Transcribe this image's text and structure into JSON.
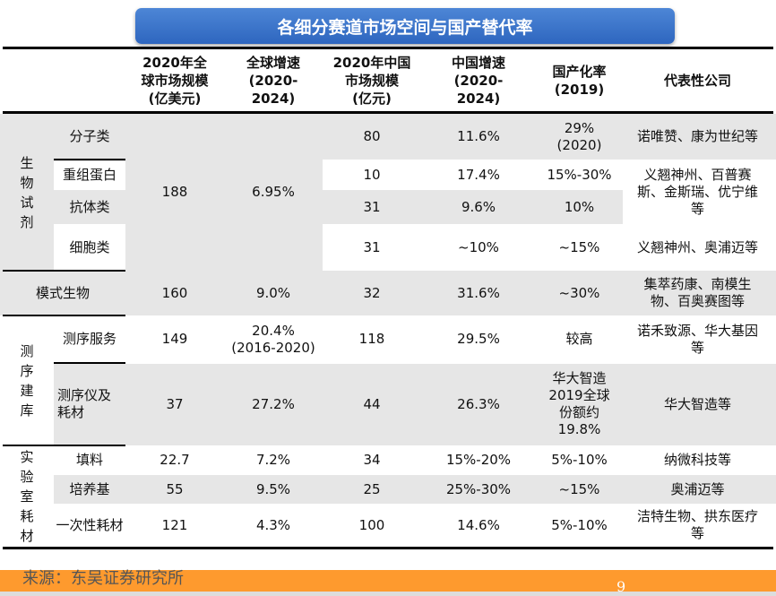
{
  "title": "各细分赛道市场空间与国产替代率",
  "headers": [
    "2020年全球市场规模(亿美元)",
    "全球增速(2020-2024)",
    "2020年中国市场规模(亿元)",
    "中国增速(2020-2024)",
    "国产化率(2019)",
    "代表性公司"
  ],
  "header_lines": [
    [
      "2020年全",
      "球市场规模",
      "(亿美元)"
    ],
    [
      "全球增速",
      "(2020-",
      "2024)"
    ],
    [
      "2020年中国",
      "市场规模",
      "(亿元)"
    ],
    [
      "中国增速",
      "(2020-",
      "2024)"
    ],
    [
      "国产化率",
      "(2019)"
    ],
    [
      "代表性公司"
    ]
  ],
  "groups": {
    "bio": "生物试剂",
    "seq": "测序建库",
    "lab": "实验室耗材"
  },
  "rows": {
    "molecular": {
      "name": "分子类",
      "cn_size": "80",
      "cn_growth": "11.6%",
      "domestic": "29%\n(2020)",
      "companies": "诺唯赞、康为世纪等"
    },
    "protein": {
      "name": "重组蛋白",
      "cn_size": "10",
      "cn_growth": "17.4%",
      "domestic": "15%-30%",
      "companies": "义翘神州、百普赛斯、金斯瑞、优宁维等"
    },
    "antibody": {
      "name": "抗体类",
      "cn_size": "31",
      "cn_growth": "9.6%",
      "domestic": "10%"
    },
    "cell": {
      "name": "细胞类",
      "cn_size": "31",
      "cn_growth": "~10%",
      "domestic": "~15%",
      "companies": "义翘神州、奥浦迈等"
    },
    "bio_shared": {
      "global_size": "188",
      "global_growth": "6.95%"
    },
    "model": {
      "name": "模式生物",
      "global_size": "160",
      "global_growth": "9.0%",
      "cn_size": "32",
      "cn_growth": "31.6%",
      "domestic": "~30%",
      "companies": "集萃药康、南模生物、百奥赛图等"
    },
    "seqsvc": {
      "name": "测序服务",
      "global_size": "149",
      "global_growth": "20.4%\n(2016-2020)",
      "cn_size": "118",
      "cn_growth": "29.5%",
      "domestic": "较高",
      "companies": "诺禾致源、华大基因等"
    },
    "seqinst": {
      "name": "测序仪及耗材",
      "global_size": "37",
      "global_growth": "27.2%",
      "cn_size": "44",
      "cn_growth": "26.3%",
      "domestic": "华大智造2019全球份额约19.8%",
      "companies": "华大智造等"
    },
    "filler": {
      "name": "填料",
      "global_size": "22.7",
      "global_growth": "7.2%",
      "cn_size": "34",
      "cn_growth": "15%-20%",
      "domestic": "5%-10%",
      "companies": "纳微科技等"
    },
    "medium": {
      "name": "培养基",
      "global_size": "55",
      "global_growth": "9.5%",
      "cn_size": "25",
      "cn_growth": "25%-30%",
      "domestic": "~15%",
      "companies": "奥浦迈等"
    },
    "disposable": {
      "name": "一次性耗材",
      "global_size": "121",
      "global_growth": "4.3%",
      "cn_size": "100",
      "cn_growth": "14.6%",
      "domestic": "5%-10%",
      "companies": "洁特生物、拱东医疗等"
    }
  },
  "source": "来源：东吴证券研究所",
  "page_number": "9",
  "colors": {
    "title_bar": "#3a74cc",
    "footer": "#fe9a2e",
    "shade": "#e6e6e6"
  }
}
